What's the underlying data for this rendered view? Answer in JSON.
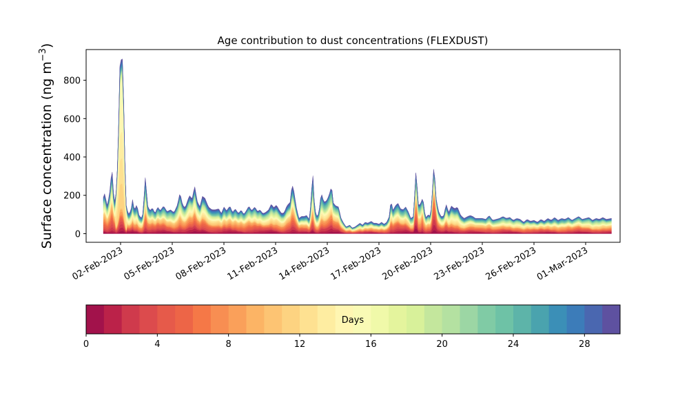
{
  "chart_data": {
    "type": "area",
    "stacked": true,
    "title": "Age contribution to dust concentrations (FLEXDUST)",
    "ylabel_main": "Surface concentration (ng m",
    "ylabel_sup": "−3",
    "ylabel_close": ")",
    "xlabel": "",
    "x_start_day": -1.0,
    "x_end_day": 28.5,
    "xlim": [
      -2.0,
      29.0
    ],
    "ylim": [
      -45,
      960
    ],
    "yticks": [
      0,
      200,
      400,
      600,
      800
    ],
    "xticks": [
      {
        "day": 0,
        "label": "02-Feb-2023"
      },
      {
        "day": 3,
        "label": "05-Feb-2023"
      },
      {
        "day": 6,
        "label": "08-Feb-2023"
      },
      {
        "day": 9,
        "label": "11-Feb-2023"
      },
      {
        "day": 12,
        "label": "14-Feb-2023"
      },
      {
        "day": 15,
        "label": "17-Feb-2023"
      },
      {
        "day": 18,
        "label": "20-Feb-2023"
      },
      {
        "day": 21,
        "label": "23-Feb-2023"
      },
      {
        "day": 24,
        "label": "26-Feb-2023"
      },
      {
        "day": 27,
        "label": "01-Mar-2023"
      }
    ],
    "total_profile": [
      [
        -1.0,
        190
      ],
      [
        -0.9,
        215
      ],
      [
        -0.8,
        140
      ],
      [
        -0.65,
        200
      ],
      [
        -0.5,
        345
      ],
      [
        -0.4,
        200
      ],
      [
        -0.3,
        150
      ],
      [
        -0.15,
        400
      ],
      [
        -0.05,
        870
      ],
      [
        0.05,
        915
      ],
      [
        0.12,
        910
      ],
      [
        0.2,
        620
      ],
      [
        0.3,
        160
      ],
      [
        0.45,
        100
      ],
      [
        0.6,
        120
      ],
      [
        0.7,
        180
      ],
      [
        0.8,
        120
      ],
      [
        0.95,
        155
      ],
      [
        1.05,
        100
      ],
      [
        1.2,
        80
      ],
      [
        1.3,
        105
      ],
      [
        1.45,
        315
      ],
      [
        1.55,
        150
      ],
      [
        1.7,
        120
      ],
      [
        1.85,
        135
      ],
      [
        2.0,
        105
      ],
      [
        2.15,
        140
      ],
      [
        2.3,
        120
      ],
      [
        2.5,
        145
      ],
      [
        2.7,
        115
      ],
      [
        2.9,
        125
      ],
      [
        3.1,
        110
      ],
      [
        3.3,
        150
      ],
      [
        3.45,
        215
      ],
      [
        3.6,
        150
      ],
      [
        3.75,
        135
      ],
      [
        3.9,
        175
      ],
      [
        4.0,
        200
      ],
      [
        4.15,
        180
      ],
      [
        4.3,
        250
      ],
      [
        4.45,
        170
      ],
      [
        4.6,
        140
      ],
      [
        4.75,
        195
      ],
      [
        4.9,
        185
      ],
      [
        5.1,
        140
      ],
      [
        5.3,
        125
      ],
      [
        5.5,
        125
      ],
      [
        5.7,
        130
      ],
      [
        5.85,
        105
      ],
      [
        6.0,
        140
      ],
      [
        6.15,
        120
      ],
      [
        6.35,
        145
      ],
      [
        6.5,
        110
      ],
      [
        6.65,
        130
      ],
      [
        6.85,
        105
      ],
      [
        7.0,
        125
      ],
      [
        7.15,
        100
      ],
      [
        7.3,
        120
      ],
      [
        7.45,
        145
      ],
      [
        7.6,
        120
      ],
      [
        7.8,
        140
      ],
      [
        7.95,
        115
      ],
      [
        8.1,
        125
      ],
      [
        8.25,
        105
      ],
      [
        8.4,
        110
      ],
      [
        8.6,
        125
      ],
      [
        8.75,
        155
      ],
      [
        8.9,
        135
      ],
      [
        9.05,
        150
      ],
      [
        9.2,
        125
      ],
      [
        9.35,
        105
      ],
      [
        9.5,
        110
      ],
      [
        9.65,
        145
      ],
      [
        9.85,
        165
      ],
      [
        9.95,
        260
      ],
      [
        10.05,
        230
      ],
      [
        10.2,
        140
      ],
      [
        10.35,
        80
      ],
      [
        10.5,
        90
      ],
      [
        10.65,
        90
      ],
      [
        10.8,
        95
      ],
      [
        10.95,
        75
      ],
      [
        11.05,
        155
      ],
      [
        11.15,
        335
      ],
      [
        11.25,
        160
      ],
      [
        11.35,
        90
      ],
      [
        11.5,
        100
      ],
      [
        11.65,
        215
      ],
      [
        11.8,
        165
      ],
      [
        11.95,
        170
      ],
      [
        12.1,
        200
      ],
      [
        12.25,
        250
      ],
      [
        12.35,
        160
      ],
      [
        12.5,
        145
      ],
      [
        12.65,
        140
      ],
      [
        12.8,
        80
      ],
      [
        12.95,
        55
      ],
      [
        13.1,
        35
      ],
      [
        13.3,
        45
      ],
      [
        13.45,
        30
      ],
      [
        13.6,
        35
      ],
      [
        13.75,
        45
      ],
      [
        13.9,
        55
      ],
      [
        14.05,
        45
      ],
      [
        14.2,
        60
      ],
      [
        14.35,
        55
      ],
      [
        14.55,
        65
      ],
      [
        14.7,
        55
      ],
      [
        14.85,
        55
      ],
      [
        15.0,
        50
      ],
      [
        15.15,
        60
      ],
      [
        15.3,
        50
      ],
      [
        15.45,
        60
      ],
      [
        15.6,
        90
      ],
      [
        15.7,
        180
      ],
      [
        15.8,
        120
      ],
      [
        15.95,
        145
      ],
      [
        16.1,
        160
      ],
      [
        16.25,
        130
      ],
      [
        16.4,
        125
      ],
      [
        16.55,
        140
      ],
      [
        16.7,
        115
      ],
      [
        16.85,
        80
      ],
      [
        17.0,
        90
      ],
      [
        17.15,
        330
      ],
      [
        17.3,
        140
      ],
      [
        17.45,
        165
      ],
      [
        17.55,
        190
      ],
      [
        17.7,
        80
      ],
      [
        17.85,
        100
      ],
      [
        18.0,
        90
      ],
      [
        18.1,
        220
      ],
      [
        18.2,
        375
      ],
      [
        18.3,
        195
      ],
      [
        18.45,
        120
      ],
      [
        18.6,
        90
      ],
      [
        18.75,
        90
      ],
      [
        18.9,
        155
      ],
      [
        19.05,
        110
      ],
      [
        19.2,
        145
      ],
      [
        19.4,
        130
      ],
      [
        19.55,
        140
      ],
      [
        19.75,
        95
      ],
      [
        19.95,
        80
      ],
      [
        20.15,
        90
      ],
      [
        20.3,
        95
      ],
      [
        20.45,
        90
      ],
      [
        20.6,
        80
      ],
      [
        20.8,
        80
      ],
      [
        21.0,
        80
      ],
      [
        21.2,
        75
      ],
      [
        21.4,
        95
      ],
      [
        21.6,
        70
      ],
      [
        21.8,
        75
      ],
      [
        22.0,
        80
      ],
      [
        22.2,
        90
      ],
      [
        22.4,
        80
      ],
      [
        22.6,
        85
      ],
      [
        22.8,
        70
      ],
      [
        23.0,
        80
      ],
      [
        23.2,
        75
      ],
      [
        23.4,
        60
      ],
      [
        23.6,
        75
      ],
      [
        23.8,
        65
      ],
      [
        24.0,
        70
      ],
      [
        24.2,
        60
      ],
      [
        24.4,
        75
      ],
      [
        24.6,
        65
      ],
      [
        24.8,
        80
      ],
      [
        25.0,
        70
      ],
      [
        25.2,
        85
      ],
      [
        25.4,
        70
      ],
      [
        25.6,
        80
      ],
      [
        25.8,
        75
      ],
      [
        26.0,
        85
      ],
      [
        26.2,
        70
      ],
      [
        26.4,
        80
      ],
      [
        26.6,
        90
      ],
      [
        26.8,
        75
      ],
      [
        27.0,
        80
      ],
      [
        27.2,
        85
      ],
      [
        27.4,
        70
      ],
      [
        27.6,
        80
      ],
      [
        27.8,
        75
      ],
      [
        28.0,
        85
      ],
      [
        28.2,
        75
      ],
      [
        28.5,
        80
      ]
    ],
    "colorbar": {
      "label": "Days",
      "ticks": [
        0,
        4,
        8,
        12,
        16,
        20,
        24,
        28
      ],
      "vmin": 0,
      "vmax": 30,
      "colors": [
        "#a2124b",
        "#bb2249",
        "#cf3a4c",
        "#dc4b4d",
        "#e65a4a",
        "#ed6547",
        "#f57847",
        "#f88e52",
        "#faa05a",
        "#fcb465",
        "#fdc473",
        "#fdd381",
        "#fee191",
        "#feeda1",
        "#fff6b2",
        "#f9fab5",
        "#f0f9a9",
        "#e4f49d",
        "#d8f19a",
        "#c4e79d",
        "#b4e1a1",
        "#9cd6a4",
        "#80cba5",
        "#6ec2a6",
        "#5db4a9",
        "#4aa3ae",
        "#3b8fb7",
        "#3c7cb9",
        "#4a67b0",
        "#5e51a0"
      ]
    }
  }
}
